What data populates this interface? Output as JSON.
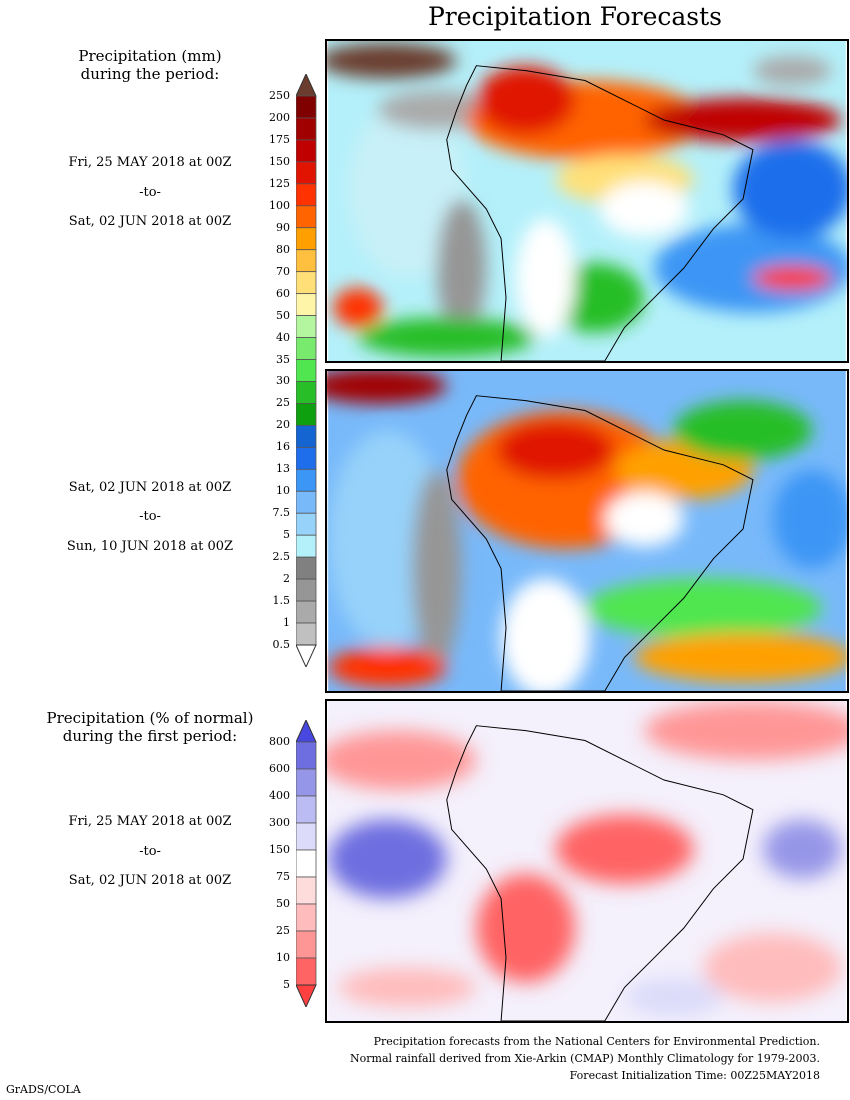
{
  "title": "Precipitation Forecasts",
  "section1": {
    "label_line1": "Precipitation (mm)",
    "label_line2": "during the period:",
    "period1": {
      "start": "Fri, 25 MAY 2018 at 00Z",
      "sep": "-to-",
      "end": "Sat, 02 JUN 2018 at 00Z"
    },
    "period2": {
      "start": "Sat, 02 JUN 2018 at 00Z",
      "sep": "-to-",
      "end": "Sun, 10 JUN 2018 at 00Z"
    },
    "colorbar": {
      "ticks": [
        "250",
        "200",
        "175",
        "150",
        "125",
        "100",
        "90",
        "80",
        "70",
        "60",
        "50",
        "40",
        "35",
        "30",
        "25",
        "20",
        "16",
        "13",
        "10",
        "7.5",
        "5",
        "2.5",
        "2",
        "1.5",
        "1",
        "0.5"
      ],
      "colors": [
        "#800000",
        "#a00000",
        "#c00000",
        "#e01400",
        "#ff3200",
        "#ff6400",
        "#ffa000",
        "#ffc040",
        "#ffe078",
        "#fff5a8",
        "#b4f5a0",
        "#78eb6e",
        "#50e650",
        "#28be28",
        "#0fa00f",
        "#1464d2",
        "#1e6eeb",
        "#3c96f5",
        "#78b9fa",
        "#96d2fa",
        "#b4f0fa",
        "#808080",
        "#969696",
        "#aaaaaa",
        "#c0c0c0"
      ],
      "over_color": "#6b3d2e",
      "under_color": "#ffffff"
    }
  },
  "section2": {
    "label_line1": "Precipitation (% of normal)",
    "label_line2": "during the first period:",
    "period": {
      "start": "Fri, 25 MAY 2018 at 00Z",
      "sep": "-to-",
      "end": "Sat, 02 JUN 2018 at 00Z"
    },
    "colorbar": {
      "ticks": [
        "800",
        "600",
        "400",
        "300",
        "150",
        "75",
        "50",
        "25",
        "10",
        "5"
      ],
      "colors": [
        "#6e6ee0",
        "#9696e8",
        "#bcbcf5",
        "#dcdcfa",
        "#ffffff",
        "#ffdcdc",
        "#ffbcbc",
        "#ff9696",
        "#ff6464"
      ],
      "over_color": "#4848e0",
      "under_color": "#ff4040"
    }
  },
  "footer": {
    "line1": "Precipitation forecasts from the National Centers for Environmental Prediction.",
    "line2": "Normal rainfall derived from Xie-Arkin (CMAP) Monthly Climatology for 1979-2003.",
    "line3": "Forecast Initialization Time: 00Z25MAY2018"
  },
  "credit": "GrADS/COLA"
}
